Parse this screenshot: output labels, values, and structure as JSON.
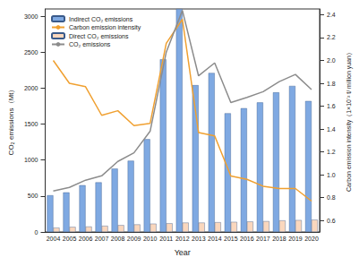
{
  "chart_data": {
    "type": "bar",
    "x_label": "Year",
    "y_label": "CO₂ emissions（Mt）",
    "y2_label": "Carbon emission intensity（1×10⁻² t/ million yuan）",
    "categories": [
      "2004",
      "2005",
      "2006",
      "2007",
      "2008",
      "2009",
      "2010",
      "2011",
      "2012",
      "2013",
      "2014",
      "2015",
      "2016",
      "2017",
      "2018",
      "2019",
      "2020"
    ],
    "series": [
      {
        "name": "Indirect CO₂ emissions",
        "type": "bar",
        "color": "#7fa9e2",
        "values": [
          510,
          550,
          650,
          690,
          880,
          990,
          1290,
          2400,
          3100,
          2040,
          2210,
          1650,
          1720,
          1800,
          1940,
          2030,
          1820
        ]
      },
      {
        "name": "Carbon emission intensity",
        "type": "line",
        "axis": "y2",
        "color": "#f0a030",
        "values": [
          2.0,
          1.8,
          1.77,
          1.52,
          1.56,
          1.43,
          1.45,
          2.15,
          2.36,
          1.37,
          1.34,
          0.99,
          0.96,
          0.9,
          0.88,
          0.88,
          0.77
        ]
      },
      {
        "name": "Direct CO₂ emissions",
        "type": "bar",
        "color": "#fad7bd",
        "values": [
          60,
          70,
          75,
          85,
          95,
          105,
          115,
          120,
          130,
          130,
          135,
          140,
          145,
          150,
          160,
          165,
          170
        ]
      },
      {
        "name": "CO₂ emissions",
        "type": "line",
        "color": "#8c8c8c",
        "values": [
          570,
          620,
          720,
          780,
          980,
          1100,
          1400,
          2500,
          3080,
          2170,
          2350,
          1800,
          1870,
          1950,
          2090,
          2190,
          1980
        ]
      }
    ],
    "ylim": [
      0,
      3100
    ],
    "yticks": [
      0,
      500,
      1000,
      1500,
      2000,
      2500,
      3000
    ],
    "y2lim": [
      0.5,
      2.45
    ],
    "y2ticks": [
      0.6,
      0.8,
      {
        "value": 1,
        "label": "1.0"
      },
      1.2,
      1.4,
      1.6,
      1.8,
      {
        "value": 2,
        "label": "2.0"
      },
      2.2,
      2.4
    ],
    "legend": "upper left",
    "grid": false
  }
}
